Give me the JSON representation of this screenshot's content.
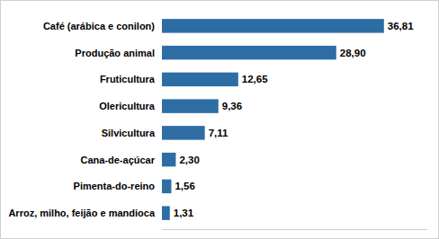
{
  "chart_data": {
    "type": "bar",
    "orientation": "horizontal",
    "categories": [
      "Arroz, milho, feijão e mandioca",
      "Pimenta-do-reino",
      "Cana-de-açúcar",
      "Silvicultura",
      "Olericultura",
      "Fruticultura",
      "Produção animal",
      "Café (arábica e conilon)"
    ],
    "values": [
      1.31,
      1.56,
      2.3,
      7.11,
      9.36,
      12.65,
      28.9,
      36.81
    ],
    "value_labels": [
      "1,31",
      "1,56",
      "2,30",
      "7,11",
      "9,36",
      "12,65",
      "28,90",
      "36,81"
    ],
    "color": "#2E6DA4",
    "xlim": [
      0,
      44
    ],
    "data_labels": true,
    "tick_labels": "y"
  }
}
